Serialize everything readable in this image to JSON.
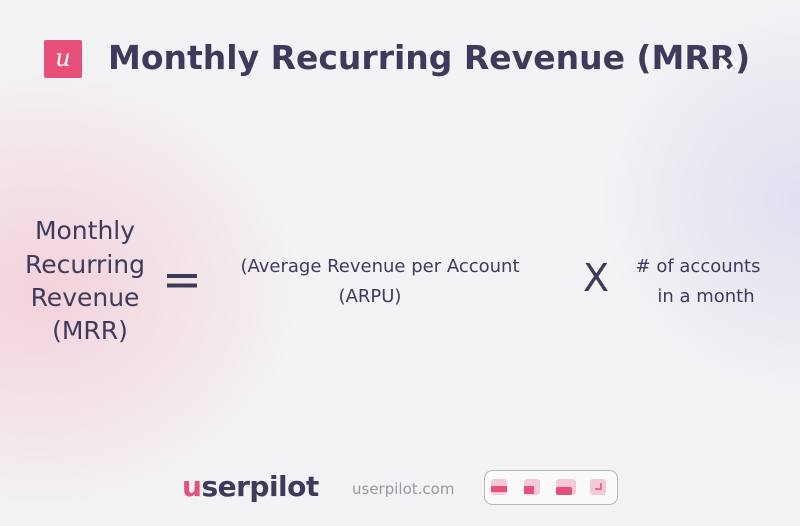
{
  "header": {
    "logo": "u",
    "title": "Monthly Recurring Revenue (MRR)"
  },
  "formula": {
    "left": [
      "Monthly",
      "Recurring",
      "Revenue",
      "(MRR)"
    ],
    "equals": "=",
    "middle": [
      "(Average Revenue per Account",
      "(ARPU)"
    ],
    "times": "X",
    "right": [
      "# of accounts",
      "in a month"
    ]
  },
  "footer": {
    "brand": "userpilot",
    "url": "userpilot.com"
  }
}
